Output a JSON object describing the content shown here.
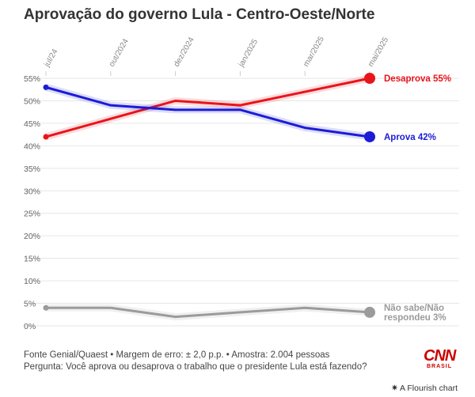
{
  "title": "Aprovação do governo Lula - Centro-Oeste/Norte",
  "footer": {
    "source": "Fonte Genial/Quaest • Margem de erro: ± 2,0 p.p. • Amostra: 2.004 pessoas",
    "question": "Pergunta: Você aprova ou desaprova o trabalho que o presidente Lula está fazendo?"
  },
  "logo": {
    "main": "CNN",
    "sub": "BRASIL"
  },
  "credit": {
    "icon": "flourish-star-icon",
    "text": "A Flourish chart"
  },
  "chart_data": {
    "type": "line",
    "x_labels": [
      "jul/24",
      "out/2024",
      "dez/2024",
      "jan/2025",
      "mar/2025",
      "mai/2025"
    ],
    "y_ticks": [
      "0%",
      "5%",
      "10%",
      "15%",
      "20%",
      "25%",
      "30%",
      "35%",
      "40%",
      "45%",
      "50%",
      "55%"
    ],
    "ylim": [
      0,
      55
    ],
    "grid": true,
    "series": [
      {
        "name": "Desaprova",
        "label": "Desaprova 55%",
        "color": "#e8141b",
        "values": [
          42,
          46,
          50,
          49,
          52,
          55
        ]
      },
      {
        "name": "Aprova",
        "label": "Aprova 42%",
        "color": "#1c1cd6",
        "values": [
          53,
          49,
          48,
          48,
          44,
          42
        ]
      },
      {
        "name": "Não sabe/Não respondeu",
        "label": [
          "Não sabe/Não",
          "respondeu 3%"
        ],
        "color": "#9b9b9b",
        "values": [
          4,
          4,
          2,
          3,
          4,
          3
        ]
      }
    ]
  }
}
